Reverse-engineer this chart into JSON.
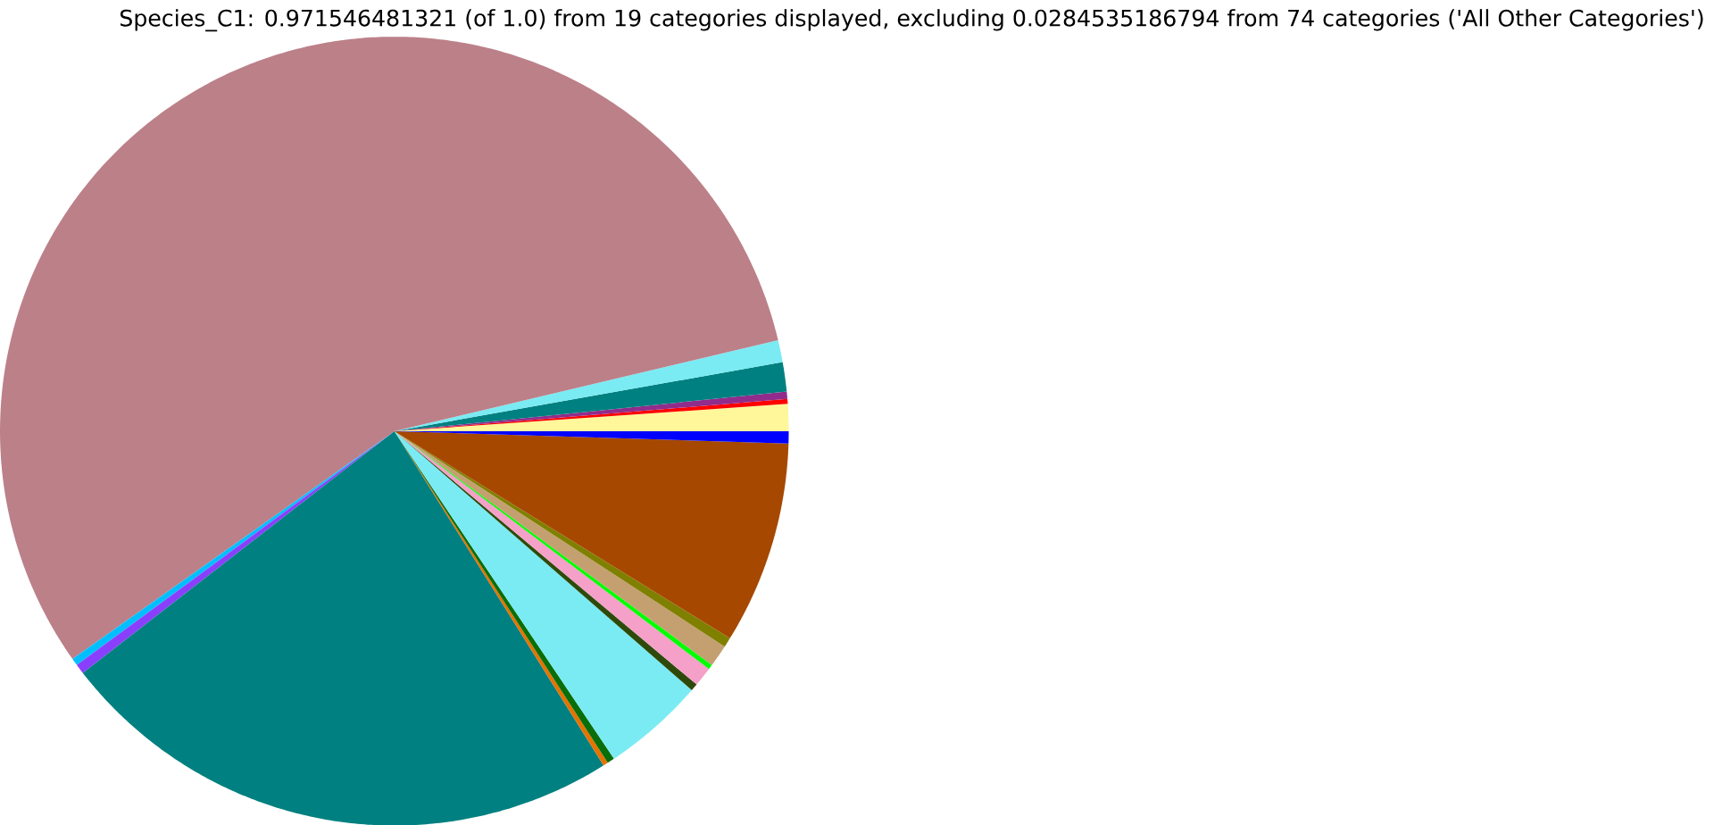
{
  "chart_data": {
    "type": "pie",
    "title": "Species_C1: 0.971546481321 (of 1.0) from 19 categories displayed, excluding 0.0284535186794 from 74 categories ('All Other Categories')",
    "categories": [
      null,
      null,
      null,
      null,
      null,
      null,
      null,
      null,
      null,
      null,
      null,
      null,
      null,
      null,
      null,
      null,
      null,
      null,
      null
    ],
    "values": [
      1.1,
      0.2,
      0.3,
      1.2,
      0.9,
      56.1,
      0.3,
      0.4,
      23.4,
      0.2,
      0.3,
      4.2,
      0.3,
      0.8,
      0.2,
      0.9,
      0.4,
      8.3,
      0.5
    ],
    "colors": [
      "#fff79a",
      "#ff0000",
      "#912c8c",
      "#008080",
      "#7aebf3",
      "#bc8089",
      "#00bfff",
      "#8a3ffc",
      "#008080",
      "#e67300",
      "#0a6e0a",
      "#7aebf3",
      "#2e4a0a",
      "#f4a0c8",
      "#00ff00",
      "#c4a070",
      "#808000",
      "#a64800",
      "#0000ff"
    ]
  }
}
